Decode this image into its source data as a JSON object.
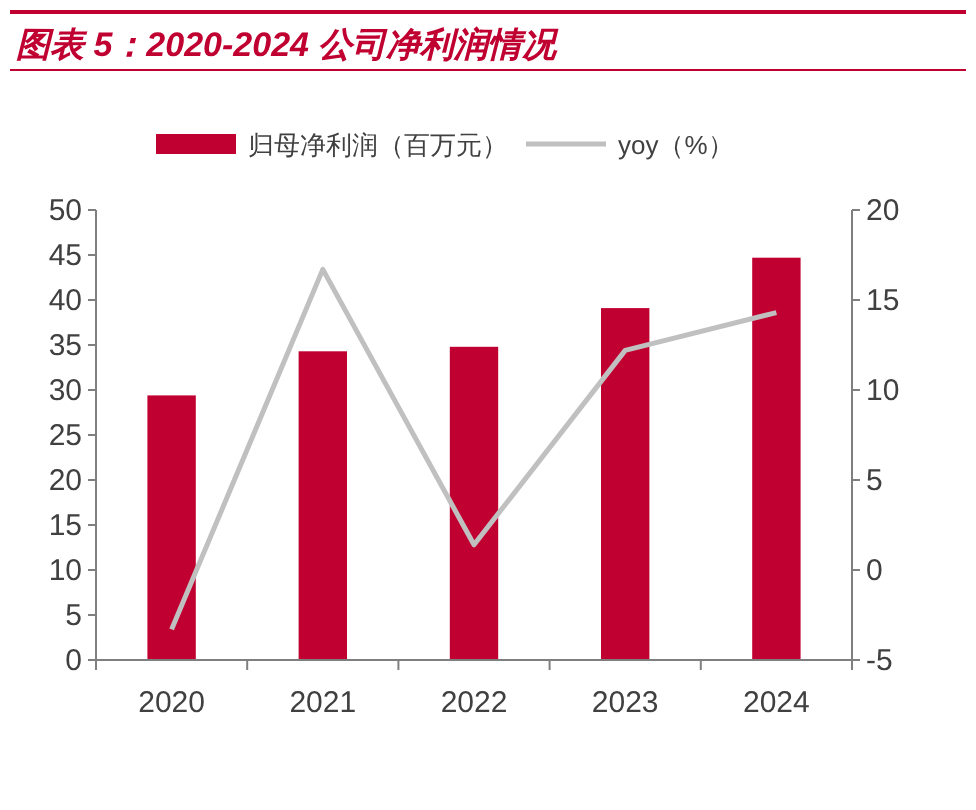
{
  "chart_data": {
    "type": "bar",
    "title": "图表 5：2020-2024 公司净利润情况",
    "categories": [
      "2020",
      "2021",
      "2022",
      "2023",
      "2024"
    ],
    "series": [
      {
        "name": "归母净利润（百万元）",
        "color": "#c00030",
        "values": [
          29.4,
          34.3,
          34.8,
          39.1,
          44.7
        ]
      },
      {
        "name": "yoy（%）",
        "type": "line",
        "axis": "y2",
        "color": "#c0c0c0",
        "values": [
          -3.3,
          16.7,
          1.4,
          12.2,
          14.3
        ]
      }
    ],
    "ylim": [
      0,
      50
    ],
    "yticks": [
      0,
      5,
      10,
      15,
      20,
      25,
      30,
      35,
      40,
      45,
      50
    ],
    "y2lim": [
      -5,
      20
    ],
    "y2ticks": [
      -5,
      0,
      5,
      10,
      15,
      20
    ],
    "legend": "top",
    "grid": false,
    "marker": "none"
  }
}
